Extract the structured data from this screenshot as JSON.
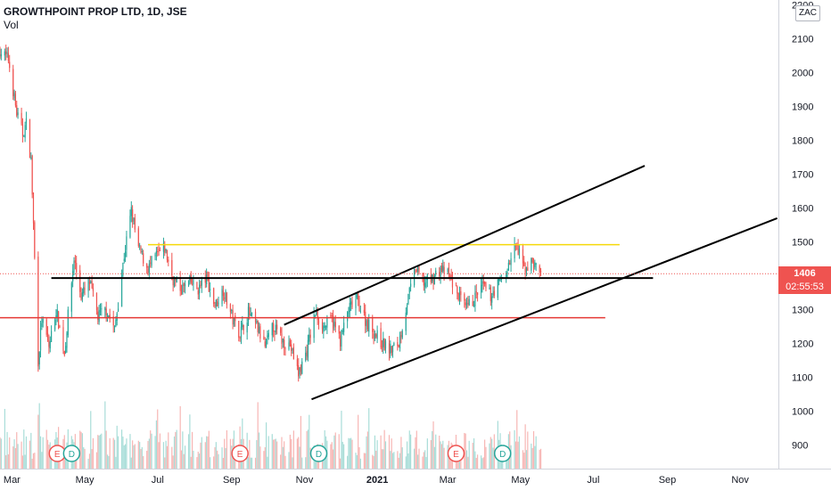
{
  "header": {
    "title": "GROWTHPOINT PROP LTD, 1D, JSE",
    "volume_label": "Vol"
  },
  "currency_badge": "ZAC",
  "price_tag": {
    "price": "1406",
    "countdown": "02:55:53"
  },
  "colors": {
    "up": "#26a69a",
    "down": "#ef5350",
    "up_vol": "#a8ddd8",
    "down_vol": "#f7b6b4",
    "yellow_line": "#f5d90a",
    "red_line": "#e53935",
    "trend": "#000000",
    "axis_text": "#131722"
  },
  "event_markers": [
    {
      "label": "E",
      "type": "earnings",
      "date": "2020-04-08"
    },
    {
      "label": "D",
      "type": "dividend",
      "date": "2020-04-20"
    },
    {
      "label": "E",
      "type": "earnings",
      "date": "2020-09-08"
    },
    {
      "label": "D",
      "type": "dividend",
      "date": "2020-11-13"
    },
    {
      "label": "E",
      "type": "earnings",
      "date": "2021-03-08"
    },
    {
      "label": "D",
      "type": "dividend",
      "date": "2021-04-16"
    }
  ],
  "chart_data": {
    "type": "candlestick",
    "title": "GROWTHPOINT PROP LTD, 1D, JSE",
    "interval": "1D",
    "exchange": "JSE",
    "currency": "ZAC",
    "x_range": [
      "2020-02-20",
      "2021-12-03"
    ],
    "y_range": [
      830,
      2215
    ],
    "y_ticks": [
      900,
      1000,
      1100,
      1200,
      1300,
      1400,
      1500,
      1600,
      1700,
      1800,
      1900,
      2000,
      2100,
      2200
    ],
    "x_ticks": [
      {
        "label": "Mar",
        "date": "2020-03-01"
      },
      {
        "label": "May",
        "date": "2020-05-01"
      },
      {
        "label": "Jul",
        "date": "2020-07-01"
      },
      {
        "label": "Sep",
        "date": "2020-09-01"
      },
      {
        "label": "Nov",
        "date": "2020-11-01"
      },
      {
        "label": "2021",
        "date": "2021-01-01"
      },
      {
        "label": "Mar",
        "date": "2021-03-01"
      },
      {
        "label": "May",
        "date": "2021-05-01"
      },
      {
        "label": "Jul",
        "date": "2021-07-01"
      },
      {
        "label": "Sep",
        "date": "2021-09-01"
      },
      {
        "label": "Nov",
        "date": "2021-11-01"
      }
    ],
    "last_price": 1406,
    "price_path": [
      [
        "2020-02-20",
        2065
      ],
      [
        "2020-02-27",
        2040
      ],
      [
        "2020-03-05",
        1880
      ],
      [
        "2020-03-10",
        1820
      ],
      [
        "2020-03-13",
        1850
      ],
      [
        "2020-03-17",
        1740
      ],
      [
        "2020-03-19",
        1550
      ],
      [
        "2020-03-23",
        1150
      ],
      [
        "2020-03-26",
        1270
      ],
      [
        "2020-04-01",
        1190
      ],
      [
        "2020-04-07",
        1300
      ],
      [
        "2020-04-14",
        1170
      ],
      [
        "2020-04-17",
        1280
      ],
      [
        "2020-04-22",
        1450
      ],
      [
        "2020-04-28",
        1340
      ],
      [
        "2020-05-05",
        1380
      ],
      [
        "2020-05-12",
        1280
      ],
      [
        "2020-05-19",
        1300
      ],
      [
        "2020-05-26",
        1240
      ],
      [
        "2020-06-03",
        1460
      ],
      [
        "2020-06-09",
        1590
      ],
      [
        "2020-06-15",
        1480
      ],
      [
        "2020-06-23",
        1420
      ],
      [
        "2020-06-30",
        1460
      ],
      [
        "2020-07-07",
        1480
      ],
      [
        "2020-07-14",
        1390
      ],
      [
        "2020-07-21",
        1360
      ],
      [
        "2020-07-28",
        1380
      ],
      [
        "2020-08-04",
        1360
      ],
      [
        "2020-08-11",
        1395
      ],
      [
        "2020-08-18",
        1310
      ],
      [
        "2020-08-25",
        1360
      ],
      [
        "2020-09-02",
        1270
      ],
      [
        "2020-09-08",
        1230
      ],
      [
        "2020-09-15",
        1290
      ],
      [
        "2020-09-22",
        1250
      ],
      [
        "2020-09-29",
        1190
      ],
      [
        "2020-10-06",
        1250
      ],
      [
        "2020-10-13",
        1210
      ],
      [
        "2020-10-20",
        1195
      ],
      [
        "2020-10-27",
        1110
      ],
      [
        "2020-11-03",
        1180
      ],
      [
        "2020-11-10",
        1290
      ],
      [
        "2020-11-17",
        1250
      ],
      [
        "2020-11-24",
        1270
      ],
      [
        "2020-12-01",
        1210
      ],
      [
        "2020-12-08",
        1300
      ],
      [
        "2020-12-15",
        1330
      ],
      [
        "2020-12-22",
        1270
      ],
      [
        "2021-01-05",
        1200
      ],
      [
        "2021-01-12",
        1180
      ],
      [
        "2021-01-19",
        1200
      ],
      [
        "2021-01-26",
        1320
      ],
      [
        "2021-02-02",
        1420
      ],
      [
        "2021-02-09",
        1380
      ],
      [
        "2021-02-16",
        1390
      ],
      [
        "2021-02-23",
        1420
      ],
      [
        "2021-03-02",
        1400
      ],
      [
        "2021-03-09",
        1350
      ],
      [
        "2021-03-16",
        1300
      ],
      [
        "2021-03-23",
        1330
      ],
      [
        "2021-03-30",
        1370
      ],
      [
        "2021-04-06",
        1340
      ],
      [
        "2021-04-13",
        1380
      ],
      [
        "2021-04-20",
        1420
      ],
      [
        "2021-04-27",
        1490
      ],
      [
        "2021-05-04",
        1420
      ],
      [
        "2021-05-11",
        1440
      ],
      [
        "2021-05-18",
        1406
      ]
    ],
    "horizontal_lines": [
      {
        "color": "yellow",
        "price": 1492,
        "from": "2020-06-23",
        "to": "2021-07-23"
      },
      {
        "color": "black",
        "price": 1393,
        "from": "2020-04-03",
        "to": "2021-08-20"
      },
      {
        "color": "red",
        "price": 1276,
        "from": "2020-02-20",
        "to": "2021-07-11"
      }
    ],
    "trendlines": [
      {
        "name": "channel-upper",
        "from": [
          "2020-10-15",
          1255
        ],
        "to": [
          "2021-08-13",
          1725
        ]
      },
      {
        "name": "channel-lower",
        "from": [
          "2020-11-07",
          1035
        ],
        "to": [
          "2021-12-02",
          1570
        ]
      }
    ]
  }
}
